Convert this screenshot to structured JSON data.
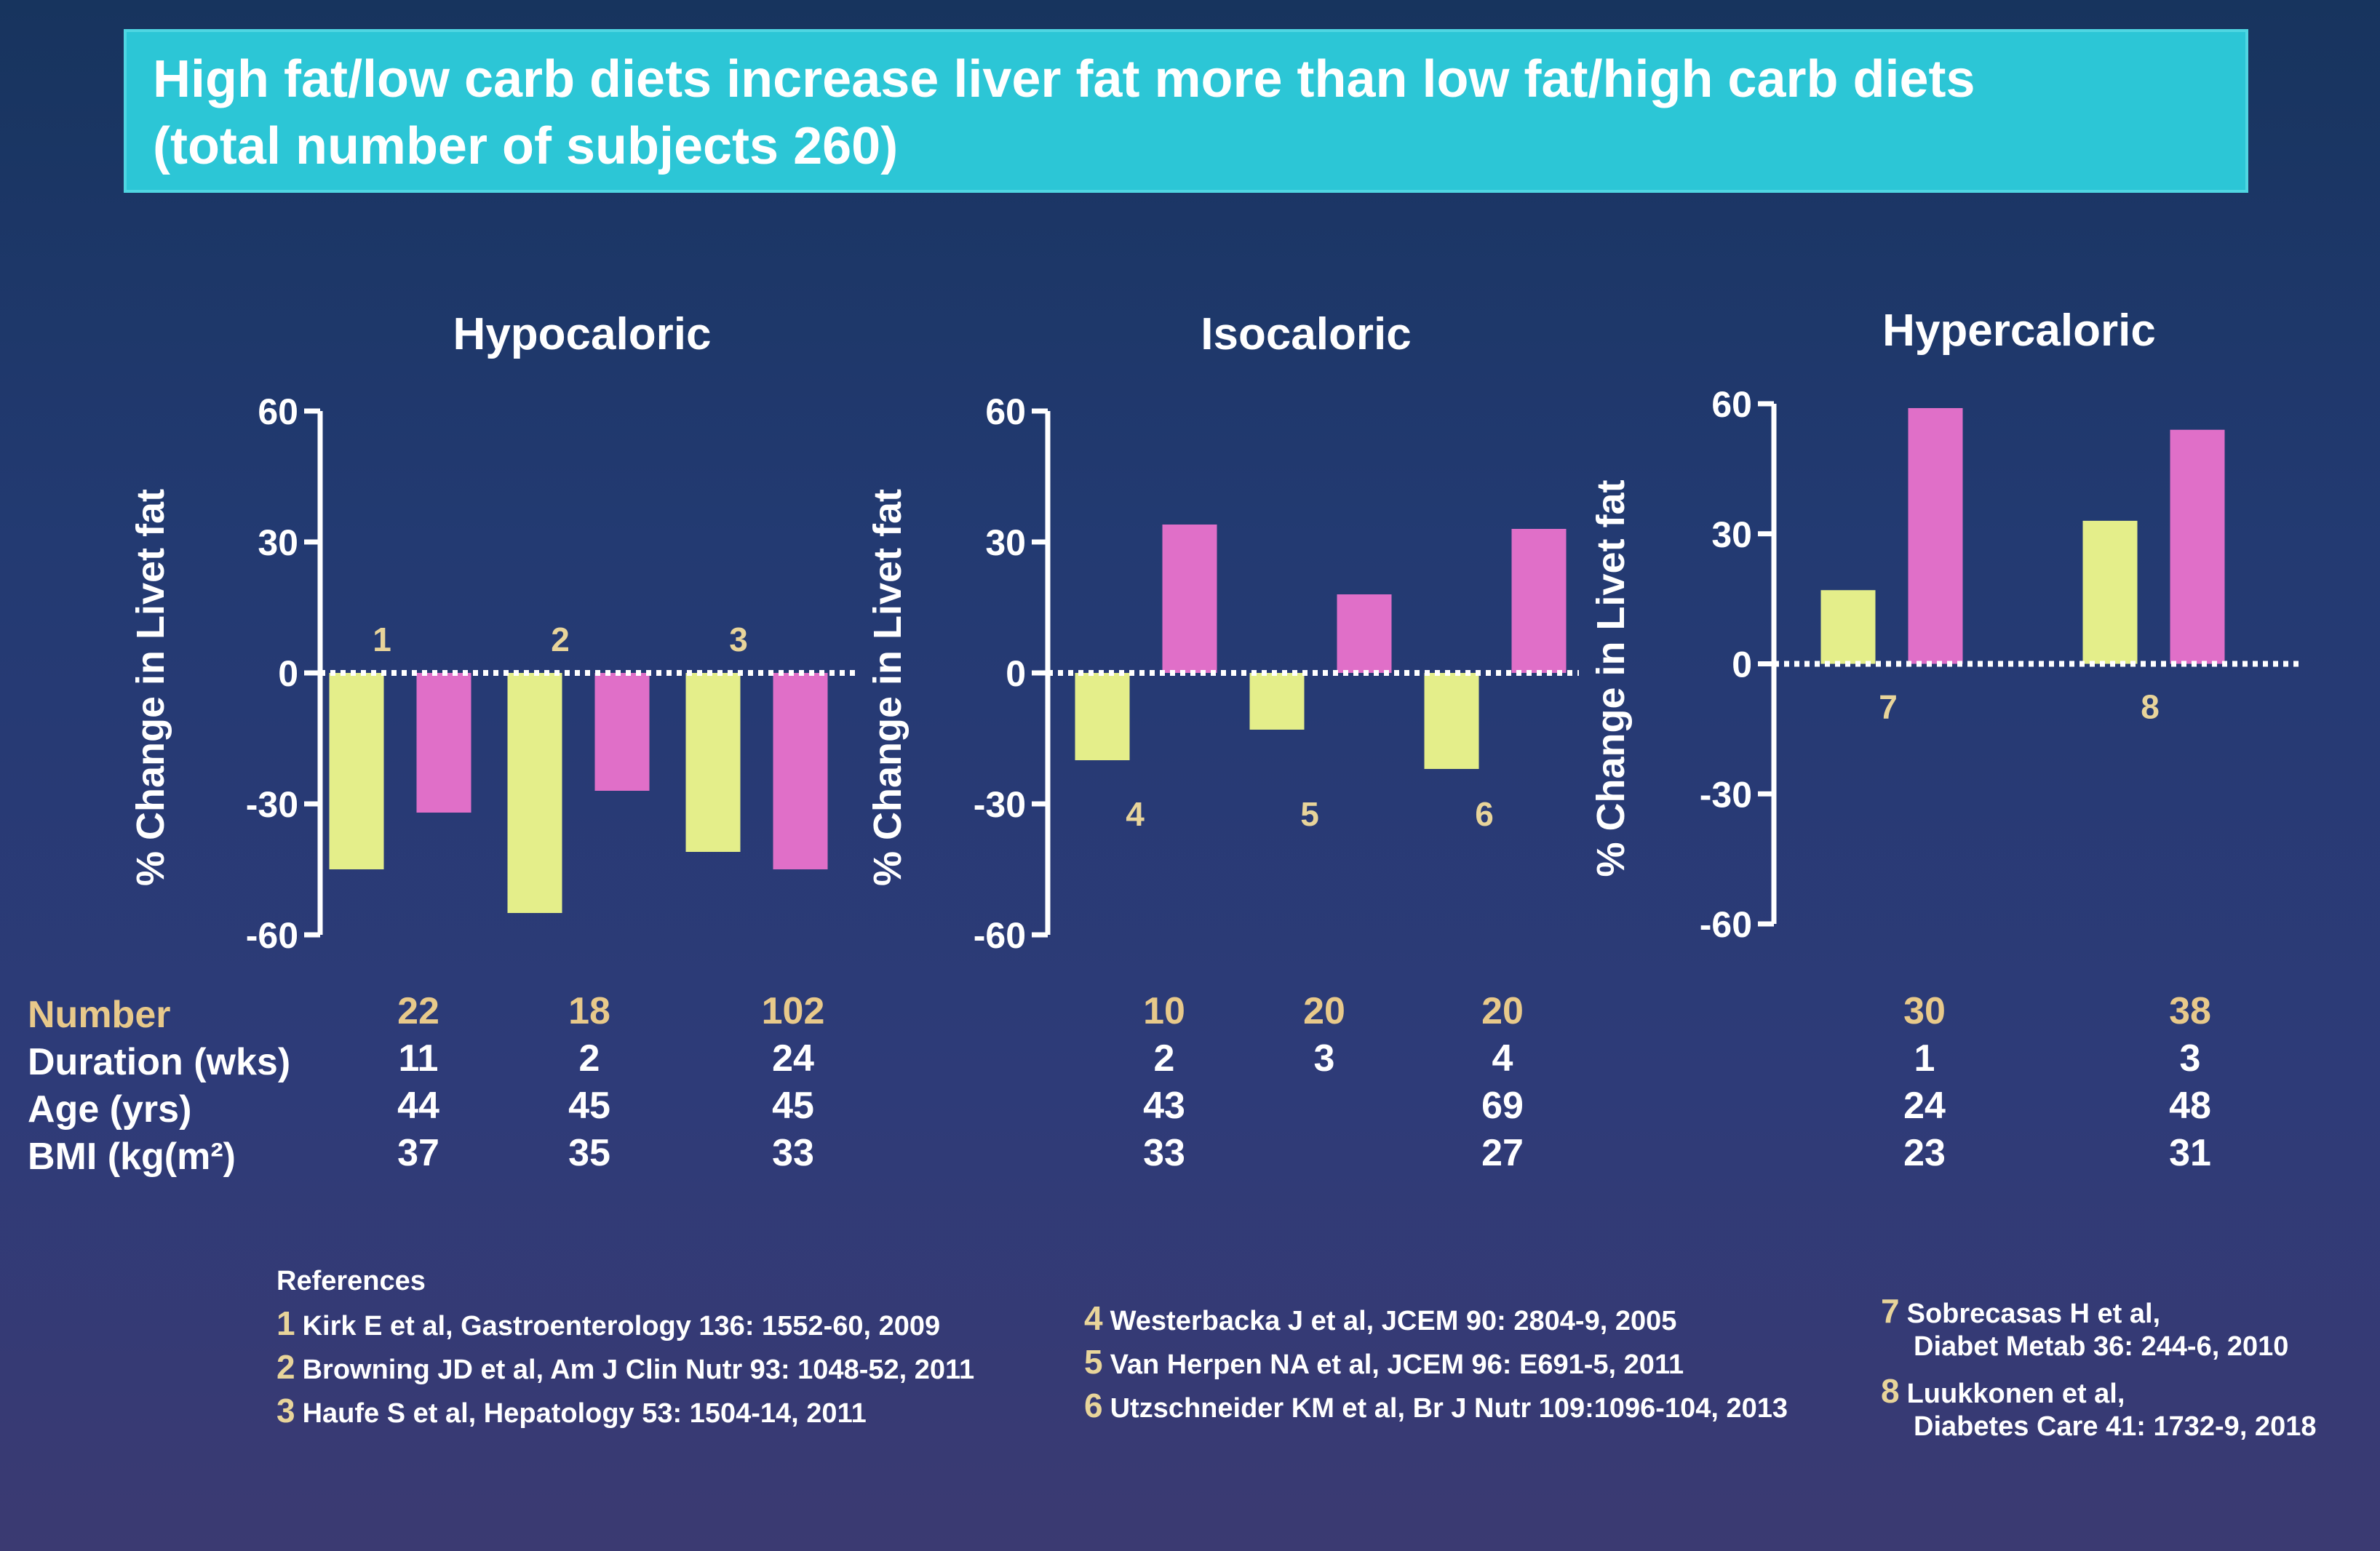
{
  "title": {
    "line1": "High fat/low carb diets increase liver fat more than low fat/high carb diets",
    "line2": "(total number of subjects 260)"
  },
  "colors": {
    "low_fat_high_carb": "#e4ee8a",
    "high_fat_low_carb": "#e06fc8",
    "axis": "#ffffff",
    "number_label": "#e8c98a"
  },
  "chart_data": [
    {
      "type": "bar",
      "title": "Hypocaloric",
      "ylabel": "% Change in Livet fat",
      "ylim": [
        -60,
        60
      ],
      "yticks": [
        "60",
        "30",
        "0",
        "-30",
        "-60"
      ],
      "categories": [
        "1",
        "2",
        "3"
      ],
      "series": [
        {
          "values": [
            -45,
            -55,
            -41
          ]
        },
        {
          "values": [
            -32,
            -27,
            -45
          ]
        }
      ]
    },
    {
      "type": "bar",
      "title": "Isocaloric",
      "ylabel": "% Change in Livet fat",
      "ylim": [
        -60,
        60
      ],
      "yticks": [
        "60",
        "30",
        "0",
        "-30",
        "-60"
      ],
      "categories": [
        "4",
        "5",
        "6"
      ],
      "series": [
        {
          "values": [
            -20,
            -13,
            -22
          ]
        },
        {
          "values": [
            34,
            18,
            33
          ]
        }
      ]
    },
    {
      "type": "bar",
      "title": "Hypercaloric",
      "ylabel": "% Change in Livet fat",
      "ylim": [
        -60,
        60
      ],
      "yticks": [
        "60",
        "30",
        "0",
        "-30",
        "-60"
      ],
      "categories": [
        "7",
        "8"
      ],
      "series": [
        {
          "values": [
            17,
            33
          ]
        },
        {
          "values": [
            59,
            54
          ]
        }
      ]
    }
  ],
  "table": {
    "labels": [
      "Number",
      "Duration (wks)",
      "Age (yrs)",
      "BMI (kg(m²)"
    ],
    "columns": [
      {
        "values": [
          "22",
          "11",
          "44",
          "37"
        ]
      },
      {
        "values": [
          "18",
          "2",
          "45",
          "35"
        ]
      },
      {
        "values": [
          "102",
          "24",
          "45",
          "33"
        ]
      },
      {
        "values": [
          "10",
          "2",
          "43",
          "33"
        ]
      },
      {
        "values": [
          "20",
          "3",
          "",
          ""
        ]
      },
      {
        "values": [
          "20",
          "4",
          "69",
          "27"
        ]
      },
      {
        "values": [
          "30",
          "1",
          "24",
          "23"
        ]
      },
      {
        "values": [
          "38",
          "3",
          "48",
          "31"
        ]
      }
    ]
  },
  "references": {
    "header": "References",
    "items": [
      {
        "num": "1",
        "text": "Kirk E et al, Gastroenterology 136: 1552-60, 2009"
      },
      {
        "num": "2",
        "text": "Browning JD et al, Am J Clin Nutr 93: 1048-52, 2011"
      },
      {
        "num": "3",
        "text": "Haufe S et al, Hepatology 53: 1504-14, 2011"
      },
      {
        "num": "4",
        "text": "Westerbacka J et al, JCEM 90: 2804-9, 2005"
      },
      {
        "num": "5",
        "text": "Van Herpen NA et al,  JCEM 96: E691-5, 2011"
      },
      {
        "num": "6",
        "text": "Utzschneider KM et al, Br J Nutr 109:1096-104, 2013"
      },
      {
        "num": "7",
        "text": "Sobrecasas H et al,"
      },
      {
        "num": "",
        "text": "Diabet Metab 36: 244-6, 2010"
      },
      {
        "num": "8",
        "text": "Luukkonen  et al,"
      },
      {
        "num": "",
        "text": "Diabetes Care 41: 1732-9, 2018"
      }
    ]
  }
}
